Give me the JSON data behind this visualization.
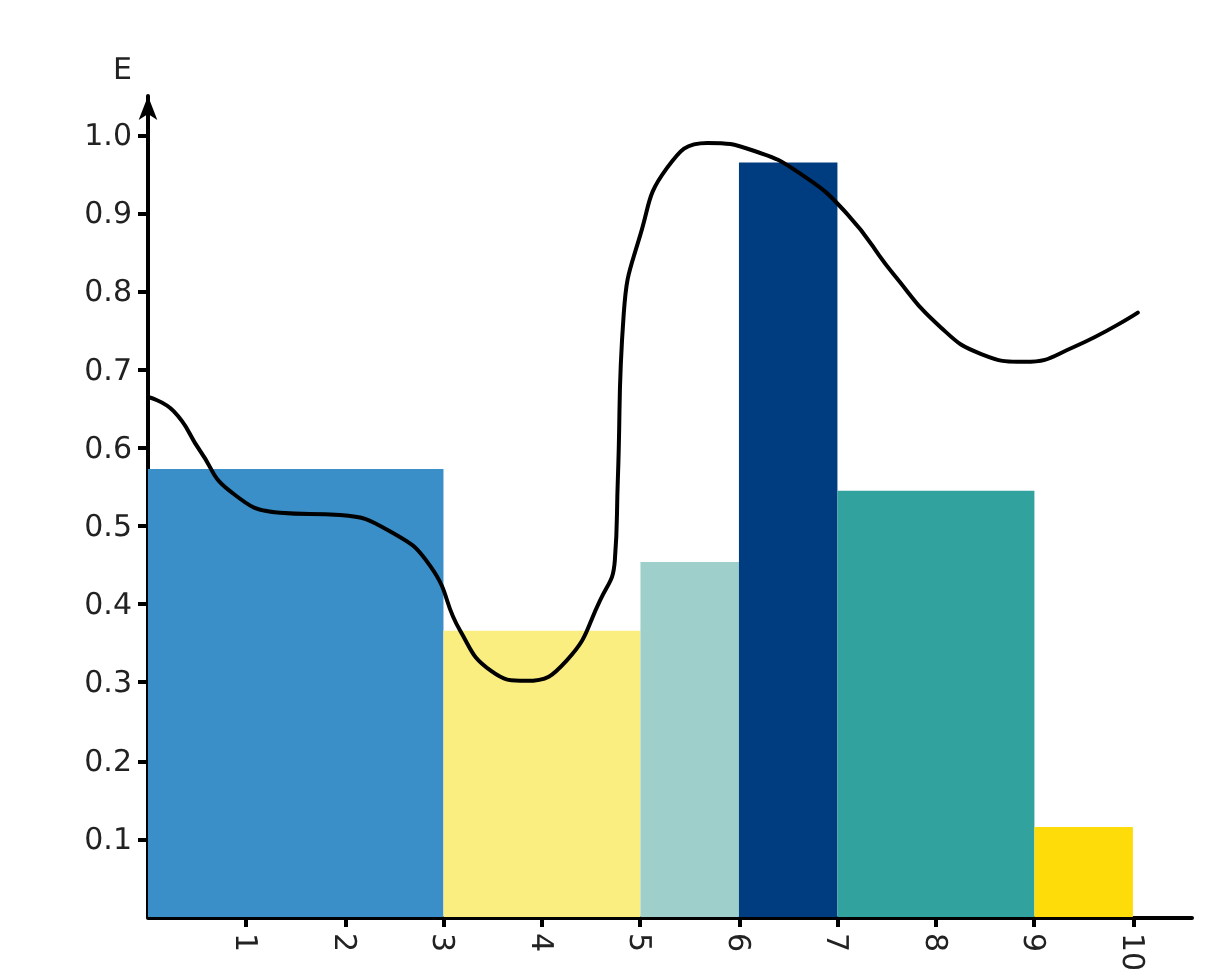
{
  "chart_data": {
    "type": "histogram",
    "ylabel": "E",
    "bins": [
      0,
      3,
      5,
      6,
      7,
      9,
      10
    ],
    "series": [
      {
        "values": [
          0.573,
          0.366,
          0.454,
          0.965,
          0.545,
          0.115
        ],
        "colors": [
          "#3a8fc8",
          "#fbee80",
          "#9fcfca",
          "#003c80",
          "#31a29d",
          "#fddc0a"
        ]
      },
      {
        "type": "line",
        "color": "#000000",
        "x": [
          0,
          0.26,
          0.53,
          0.83,
          1.34,
          1.95,
          2.46,
          2.87,
          3.17,
          3.48,
          3.84,
          4.25,
          4.59,
          4.74,
          4.77,
          4.83,
          5.0,
          5.27,
          5.68,
          6.15,
          6.63,
          7.1,
          7.57,
          8.05,
          8.46,
          8.9,
          9.4,
          10.05
        ],
        "values": [
          0.665,
          0.647,
          0.596,
          0.545,
          0.517,
          0.514,
          0.493,
          0.448,
          0.366,
          0.315,
          0.302,
          0.328,
          0.405,
          0.456,
          0.558,
          0.771,
          0.873,
          0.958,
          0.99,
          0.98,
          0.95,
          0.899,
          0.822,
          0.754,
          0.72,
          0.71,
          0.729,
          0.773
        ]
      }
    ],
    "xlim": [
      0,
      10.6
    ],
    "xticks": [
      1,
      2,
      3,
      4,
      5,
      6,
      7,
      8,
      9,
      10
    ],
    "ylim": [
      0,
      1.05
    ],
    "yticks": [
      0.1,
      0.2,
      0.3,
      0.4,
      0.5,
      0.6,
      0.7,
      0.8,
      0.9,
      {
        "value": 1,
        "label": "1.0"
      }
    ],
    "grid": false,
    "marker": "none",
    "line_style": "solid"
  }
}
